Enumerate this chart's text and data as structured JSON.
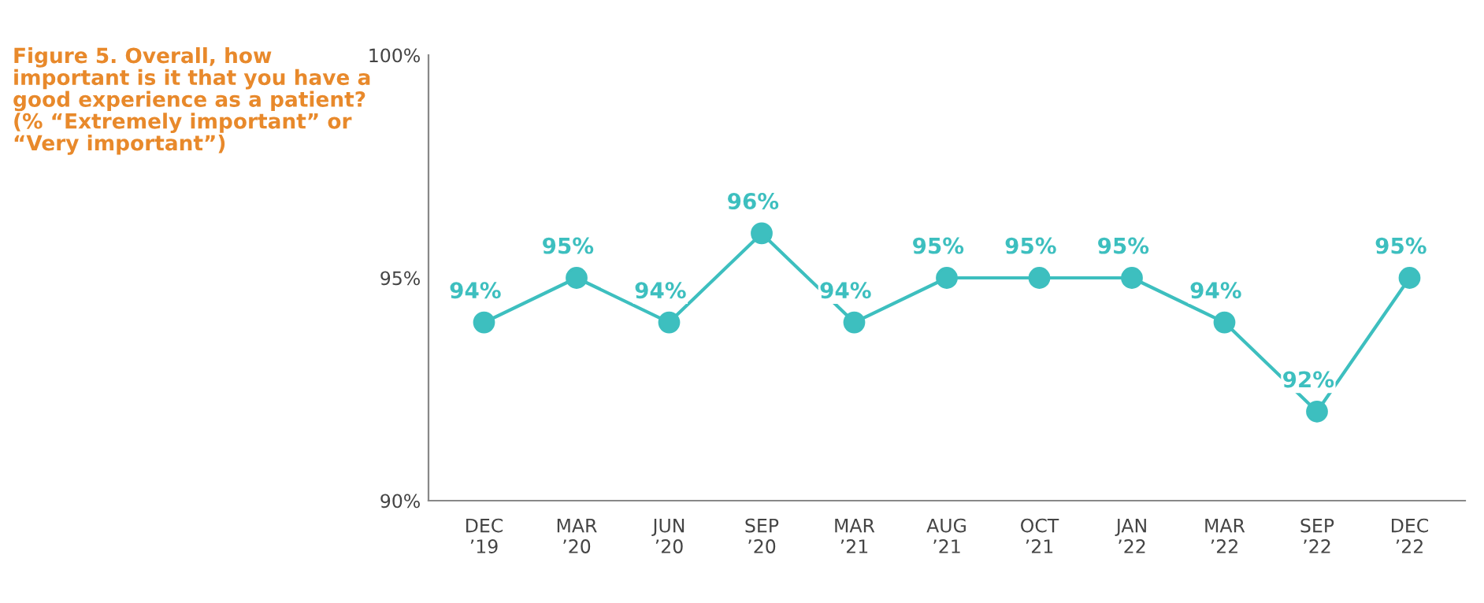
{
  "chart_data": {
    "type": "line",
    "title": "Figure 5. Overall, how important is it that you have a good experience as a patient? (% “Extremely important” or “Very important”)",
    "categories": [
      "DEC\n’19",
      "MAR\n’20",
      "JUN\n’20",
      "SEP\n’20",
      "MAR\n’21",
      "AUG\n’21",
      "OCT\n’21",
      "JAN\n’22",
      "MAR\n’22",
      "SEP\n’22",
      "DEC\n’22"
    ],
    "series": [
      {
        "color": "#3dbfbf",
        "values": [
          94,
          95,
          94,
          96,
          94,
          95,
          95,
          95,
          94,
          92,
          95
        ],
        "value_labels": [
          "94%",
          "95%",
          "94%",
          "96%",
          "94%",
          "95%",
          "95%",
          "95%",
          "94%",
          "92%",
          "95%"
        ]
      }
    ],
    "ylim": [
      90,
      100
    ],
    "yticks": [
      {
        "value": 90,
        "label": "90%"
      },
      {
        "value": 95,
        "label": "95%"
      },
      {
        "value": 100,
        "label": "100%"
      }
    ],
    "grid": false,
    "legend": false,
    "marker": "circle",
    "line_style": "solid"
  }
}
